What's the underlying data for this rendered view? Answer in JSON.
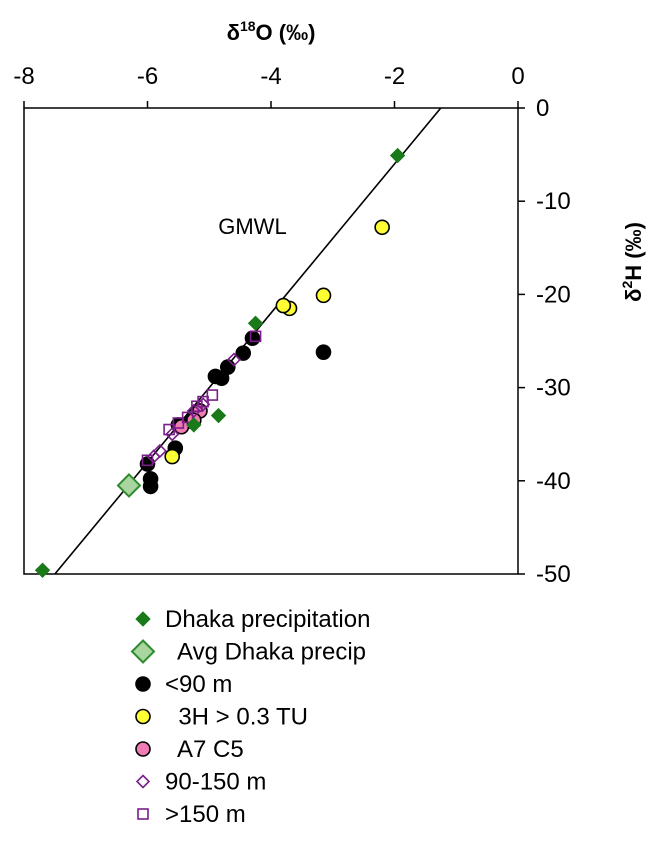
{
  "chart_data": {
    "type": "scatter",
    "title": "",
    "xlabel": "δ¹⁸O (‰)",
    "ylabel": "δ²H (‰)",
    "xlim": [
      -8,
      0
    ],
    "ylim": [
      -50,
      0
    ],
    "x_ticks": [
      "-8",
      "-6",
      "-4",
      "-2",
      "0"
    ],
    "y_ticks": [
      "0",
      "-10",
      "-20",
      "-30",
      "-40",
      "-50"
    ],
    "x_axis_position": "top",
    "y_axis_position": "right",
    "grid": false,
    "legend_position": "bottom",
    "lines": [
      {
        "label": "GMWL",
        "slope": 8,
        "intercept": 10,
        "color": "#000000"
      }
    ],
    "series": [
      {
        "name": "<90 m",
        "marker": "circle",
        "fill": "#000000",
        "stroke": "#000000",
        "points": [
          [
            -3.15,
            -26.2
          ],
          [
            -4.3,
            -24.7
          ],
          [
            -4.45,
            -26.3
          ],
          [
            -4.7,
            -27.8
          ],
          [
            -4.8,
            -29.0
          ],
          [
            -4.9,
            -28.8
          ],
          [
            -5.3,
            -33.6
          ],
          [
            -5.5,
            -34.0
          ],
          [
            -5.55,
            -36.5
          ],
          [
            -5.95,
            -39.8
          ],
          [
            -5.95,
            -40.6
          ],
          [
            -6.0,
            -38.2
          ]
        ]
      },
      {
        "name": "3H > 0.3 TU",
        "marker": "circle",
        "fill": "#ffff33",
        "stroke": "#000000",
        "points": [
          [
            -2.2,
            -12.8
          ],
          [
            -3.15,
            -20.1
          ],
          [
            -3.7,
            -21.5
          ],
          [
            -3.8,
            -21.2
          ],
          [
            -5.6,
            -37.4
          ]
        ]
      },
      {
        "name": "A7 C5",
        "marker": "circle",
        "fill": "#f07cb4",
        "stroke": "#000000",
        "points": [
          [
            -5.15,
            -32.5
          ],
          [
            -5.25,
            -33.5
          ],
          [
            -5.45,
            -34.2
          ]
        ]
      },
      {
        "name": "90-150 m",
        "marker": "diamond-open",
        "fill": "none",
        "stroke": "#7a1f8a",
        "points": [
          [
            -4.6,
            -27.0
          ],
          [
            -5.1,
            -31.8
          ],
          [
            -5.25,
            -32.5
          ],
          [
            -5.6,
            -35.0
          ],
          [
            -5.8,
            -36.8
          ],
          [
            -5.9,
            -37.4
          ]
        ]
      },
      {
        "name": ">150 m",
        "marker": "square-open",
        "fill": "none",
        "stroke": "#7a1f8a",
        "points": [
          [
            -4.25,
            -24.5
          ],
          [
            -4.95,
            -30.8
          ],
          [
            -5.1,
            -31.5
          ],
          [
            -5.2,
            -32.0
          ],
          [
            -5.35,
            -33.2
          ],
          [
            -5.5,
            -33.8
          ],
          [
            -5.65,
            -34.5
          ],
          [
            -6.0,
            -37.8
          ]
        ]
      },
      {
        "name": "Dhaka precipitation",
        "marker": "diamond",
        "fill": "#1a7a1a",
        "stroke": "#1a7a1a",
        "points": [
          [
            -1.95,
            -5.1
          ],
          [
            -4.25,
            -23.1
          ],
          [
            -4.85,
            -33.0
          ],
          [
            -5.25,
            -34.0
          ],
          [
            -7.7,
            -49.6
          ]
        ]
      },
      {
        "name": "Avg Dhaka precip",
        "marker": "diamond-large",
        "fill": "#a8d5a0",
        "stroke": "#2e8b2e",
        "points": [
          [
            -6.3,
            -40.5
          ]
        ]
      }
    ],
    "legend": [
      {
        "label": "Dhaka precipitation",
        "marker": "diamond",
        "fill": "#1a7a1a",
        "stroke": "#1a7a1a"
      },
      {
        "label": "  Avg Dhaka precip",
        "marker": "diamond-large",
        "fill": "#a8d5a0",
        "stroke": "#2e8b2e"
      },
      {
        "label": "<90 m",
        "marker": "circle",
        "fill": "#000000",
        "stroke": "#000000"
      },
      {
        "label": "  3H > 0.3 TU",
        "marker": "circle",
        "fill": "#ffff33",
        "stroke": "#000000"
      },
      {
        "label": "  A7 C5",
        "marker": "circle",
        "fill": "#f07cb4",
        "stroke": "#000000"
      },
      {
        "label": "90-150 m",
        "marker": "diamond-open",
        "fill": "none",
        "stroke": "#7a1f8a"
      },
      {
        "label": ">150 m",
        "marker": "square-open",
        "fill": "none",
        "stroke": "#7a1f8a"
      }
    ]
  }
}
